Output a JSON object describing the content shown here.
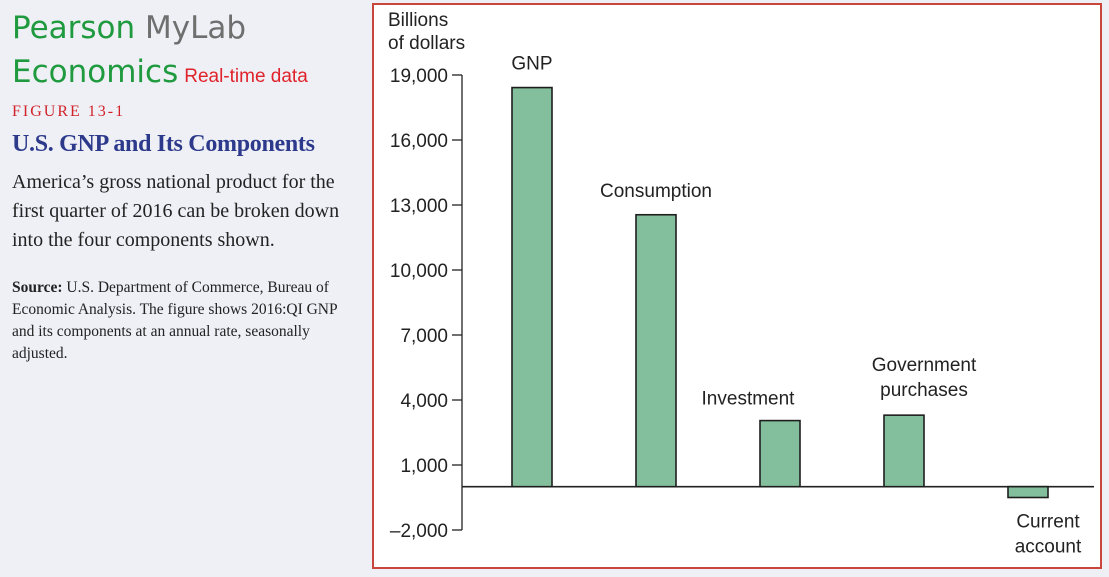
{
  "brand": {
    "line1_a": "Pearson",
    "line1_b": "MyLab",
    "line2_a": "Economics",
    "line2_badge": "Real-time data"
  },
  "figure": {
    "label": "FIGURE 13-1",
    "title": "U.S. GNP and Its Components",
    "caption": "America’s gross national product for the first quarter of 2016 can be broken down into the four components shown.",
    "source_label": "Source:",
    "source_text": "U.S. Department of Commerce, Bureau of Economic Analysis. The figure shows 2016:QI GNP and its components at an annual rate, seasonally adjusted."
  },
  "colors": {
    "bar_fill": "#83bf9c",
    "frame": "#c8463c",
    "brand_green": "#1f9a3e",
    "title_blue": "#2d3a8c"
  },
  "chart_data": {
    "type": "bar",
    "ylabel_line1": "Billions",
    "ylabel_line2": "of dollars",
    "categories": [
      {
        "line1": "GNP",
        "line2": ""
      },
      {
        "line1": "Consumption",
        "line2": ""
      },
      {
        "line1": "Investment",
        "line2": ""
      },
      {
        "line1": "Government",
        "line2": "purchases"
      },
      {
        "line1": "Current",
        "line2": "account"
      }
    ],
    "values": [
      18420,
      12550,
      3050,
      3300,
      -500
    ],
    "ylim": [
      -2000,
      19000
    ],
    "yticks": [
      -2000,
      1000,
      4000,
      7000,
      10000,
      13000,
      16000,
      19000
    ],
    "ytick_labels": [
      "–2,000",
      "1,000",
      "4,000",
      "7,000",
      "10,000",
      "13,000",
      "16,000",
      "19,000"
    ],
    "grid": false
  }
}
